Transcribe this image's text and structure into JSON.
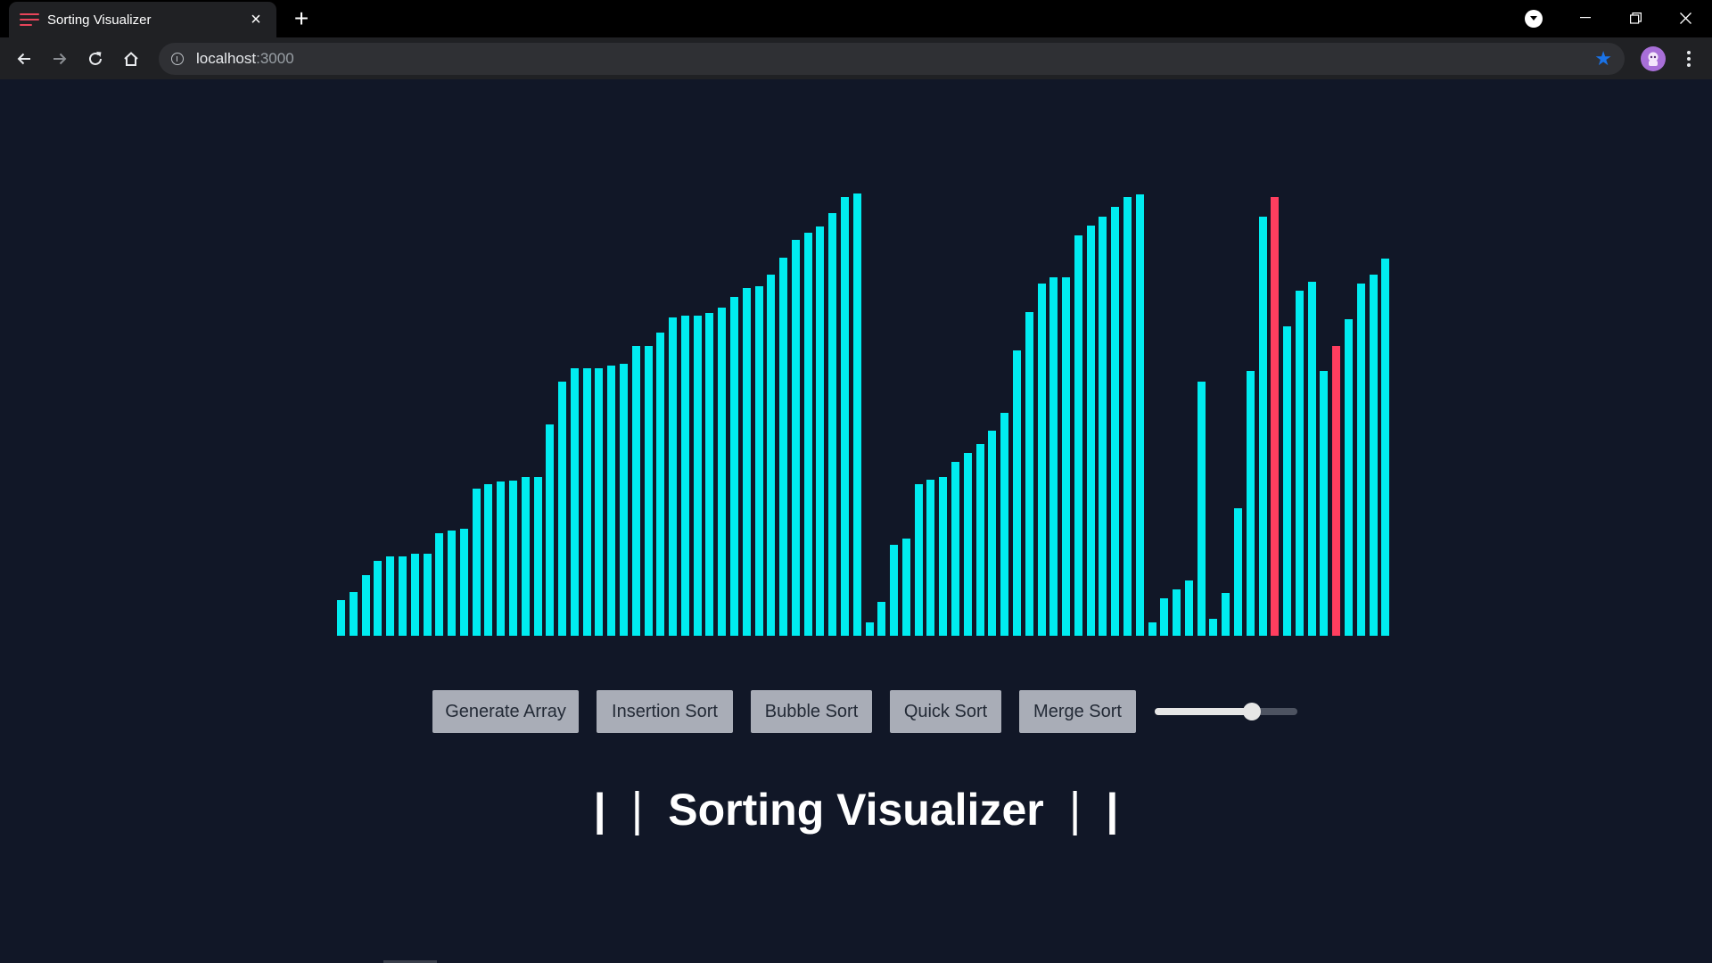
{
  "browser": {
    "tab_title": "Sorting Visualizer",
    "tab_close": "×",
    "new_tab": "+",
    "url_host": "localhost",
    "url_port": ":3000"
  },
  "controls": {
    "generate": "Generate Array",
    "insertion": "Insertion Sort",
    "bubble": "Bubble Sort",
    "quick": "Quick Sort",
    "merge": "Merge Sort",
    "speed_fraction": 0.68
  },
  "heading": "| ❘ Sorting Visualizer ❘ |",
  "colors": {
    "background": "#111727",
    "bar_default": "#00ecf0",
    "bar_compare": "#ff3e5f",
    "button_bg": "#a9adb7",
    "button_text": "#232a36"
  },
  "array": {
    "values": [
      40,
      49,
      68,
      84,
      89,
      89,
      92,
      92,
      115,
      118,
      120,
      165,
      170,
      173,
      174,
      178,
      178,
      237,
      285,
      300,
      300,
      300,
      303,
      305,
      325,
      325,
      340,
      357,
      359,
      359,
      362,
      368,
      380,
      390,
      392,
      405,
      424,
      444,
      452,
      459,
      474,
      492,
      496,
      15,
      38,
      102,
      109,
      170,
      175,
      178,
      195,
      205,
      215,
      230,
      250,
      320,
      363,
      395,
      402,
      402,
      449,
      460,
      470,
      481,
      492,
      495,
      15,
      42,
      52,
      62,
      285,
      19,
      48,
      143,
      297,
      470,
      492,
      347,
      387,
      397,
      297,
      325,
      355,
      395,
      405,
      423
    ],
    "highlighted_indices": [
      76,
      81
    ]
  }
}
